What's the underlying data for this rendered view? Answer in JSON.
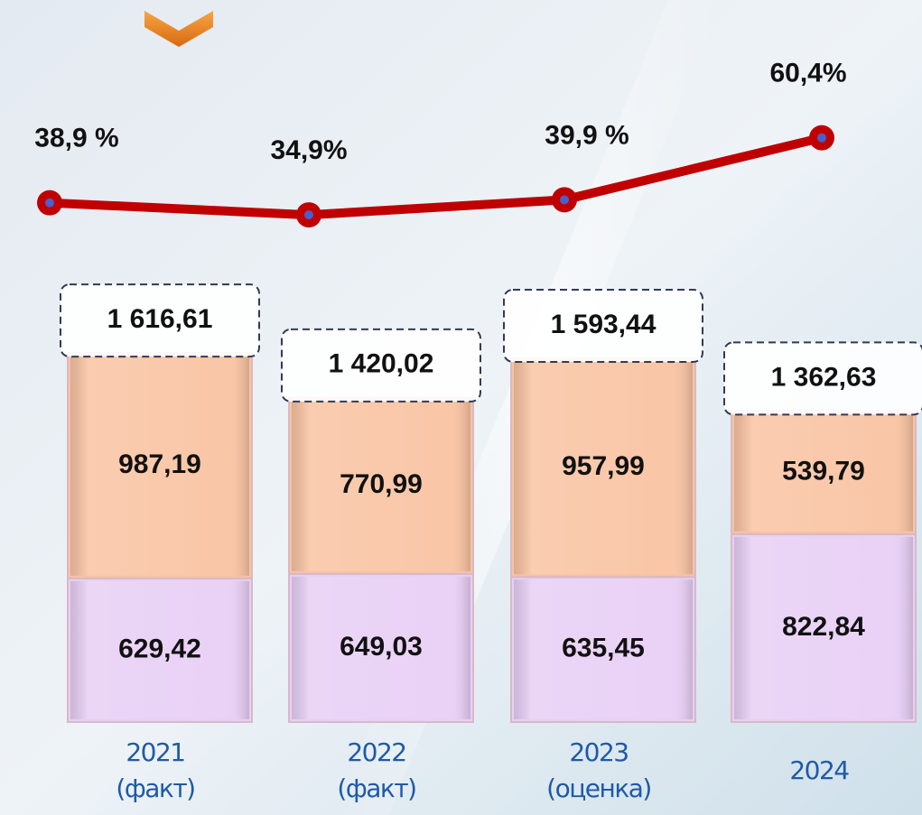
{
  "chart_data": {
    "type": "bar",
    "stacked": true,
    "categories": [
      [
        "2021",
        "(факт)"
      ],
      [
        "2022",
        "(факт)"
      ],
      [
        "2023",
        "(оценка)"
      ],
      [
        "2024"
      ]
    ],
    "series": [
      {
        "color": "#e8cff5",
        "values": [
          629.42,
          649.03,
          635.45,
          822.84
        ],
        "value_labels": [
          "629,42",
          "649,03",
          "635,45",
          "822,84"
        ]
      },
      {
        "color": "#f9c3a2",
        "values": [
          987.19,
          770.99,
          957.99,
          539.79
        ],
        "value_labels": [
          "987,19",
          "770,99",
          "957,99",
          "539,79"
        ]
      },
      {
        "type": "line",
        "axis": "y2",
        "color": "#c00000",
        "values": [
          38.9,
          34.9,
          39.9,
          60.4
        ],
        "value_labels": [
          "38,9 %",
          "34,9%",
          "39,9 %",
          "60,4%"
        ]
      }
    ],
    "totals": {
      "values": [
        1616.61,
        1420.02,
        1593.44,
        1362.63
      ],
      "value_labels": [
        "1 616,61",
        "1 420,02",
        "1 593,44",
        "1 362,63"
      ]
    },
    "ylim": [
      0,
      1700
    ],
    "y2lim": [
      0,
      100
    ]
  }
}
